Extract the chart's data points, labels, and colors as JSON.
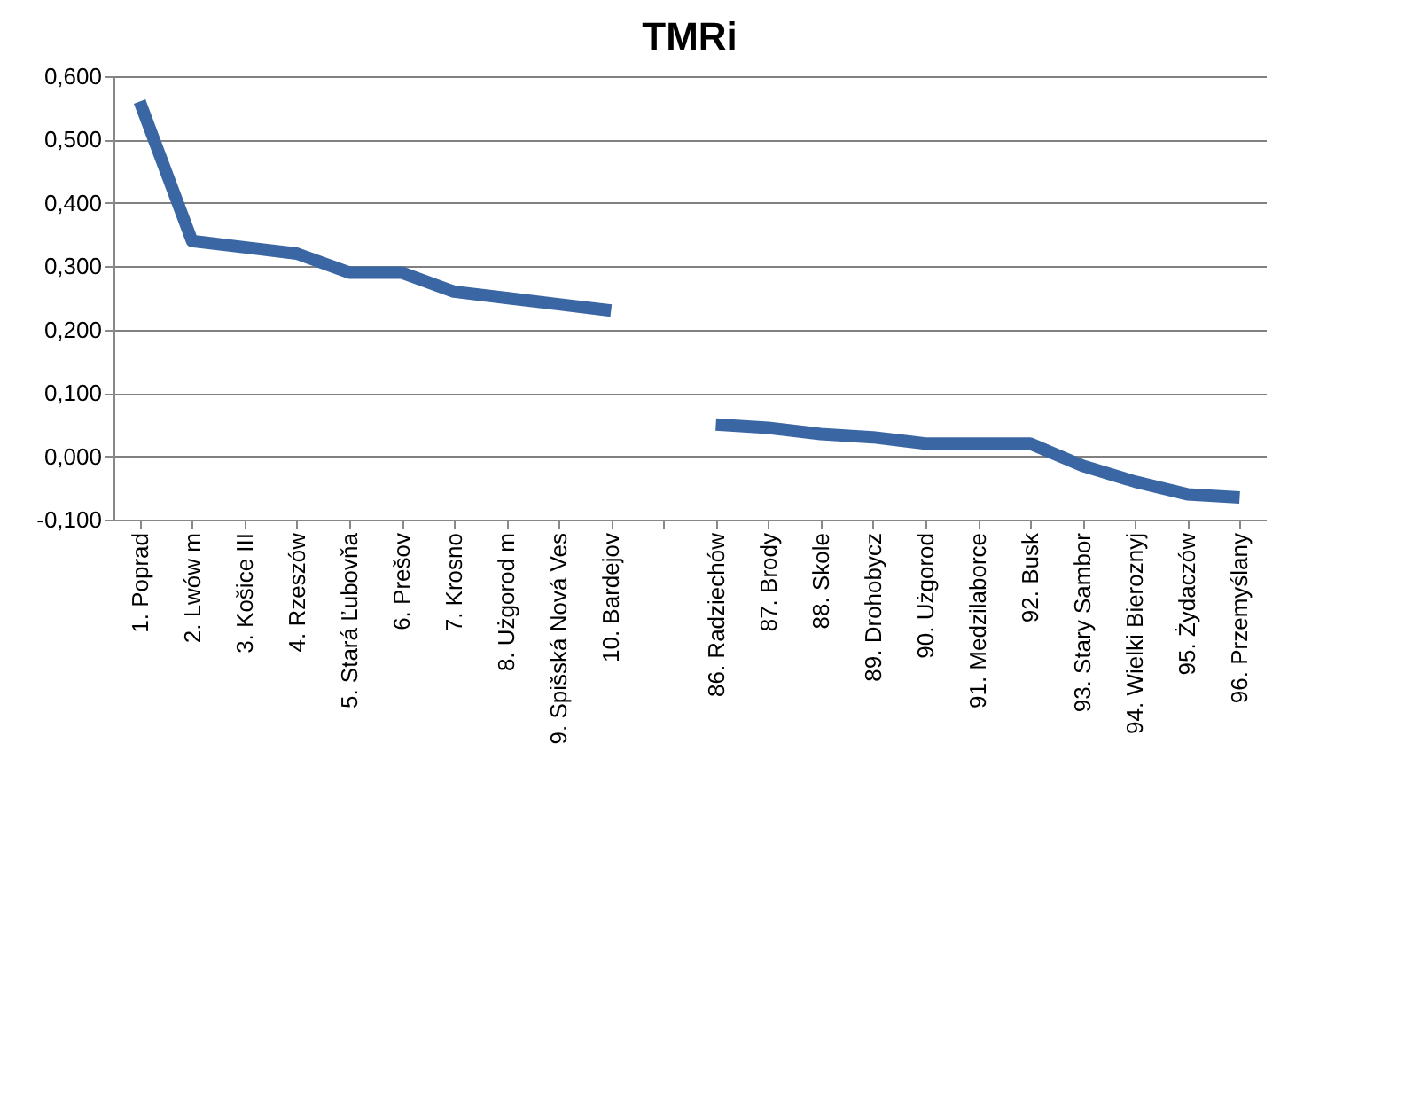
{
  "chart_data": {
    "type": "line",
    "title": "TMRi",
    "categories": [
      "1. Poprad",
      "2. Lwów m",
      "3. Košice III",
      "4. Rzeszów",
      "5. Stará Ľubovňa",
      "6. Prešov",
      "7. Krosno",
      "8. Użgorod m",
      "9. Spišská Nová Ves",
      "10. Bardejov",
      null,
      "86. Radziechów",
      "87. Brody",
      "88. Skole",
      "89. Drohobycz",
      "90. Użgorod",
      "91. Medzilaborce",
      "92. Busk",
      "93. Stary Sambor",
      "94. Wielki Bieroznyj",
      "95. Żydaczów",
      "96. Przemyślany"
    ],
    "series": [
      {
        "color": "#3a67a4",
        "values": [
          0.56,
          0.34,
          0.33,
          0.32,
          0.29,
          0.29,
          0.26,
          0.25,
          0.24,
          0.23,
          null,
          0.05,
          0.045,
          0.035,
          0.03,
          0.02,
          0.02,
          0.02,
          -0.015,
          -0.04,
          -0.06,
          -0.065
        ]
      }
    ],
    "ylim": [
      -0.1,
      0.6
    ],
    "yticks": [
      {
        "value": -0.1,
        "label": "-0,100"
      },
      {
        "value": 0,
        "label": "0,000"
      },
      {
        "value": 0.1,
        "label": "0,100"
      },
      {
        "value": 0.2,
        "label": "0,200"
      },
      {
        "value": 0.3,
        "label": "0,300"
      },
      {
        "value": 0.4,
        "label": "0,400"
      },
      {
        "value": 0.5,
        "label": "0,500"
      },
      {
        "value": 0.6,
        "label": "0,600"
      }
    ],
    "grid": "y",
    "marker": "none",
    "line_style": "solid"
  }
}
